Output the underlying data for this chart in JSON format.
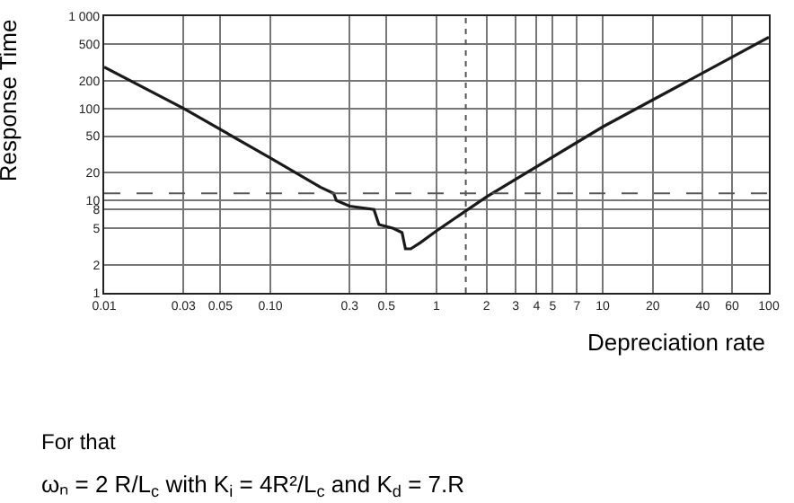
{
  "chart_data": {
    "type": "line",
    "xlabel": "Depreciation rate",
    "ylabel": "Response Time",
    "log": "xy",
    "grid": true,
    "marker": "none",
    "line_style": "solid",
    "xlim": [
      0.01,
      100
    ],
    "ylim": [
      1,
      1000
    ],
    "xticks": [
      0.01,
      0.03,
      0.05,
      {
        "value": 0.1,
        "label": "0.10"
      },
      0.3,
      0.5,
      1,
      2,
      3,
      4,
      5,
      7,
      10,
      20,
      40,
      60,
      100
    ],
    "yticks": [
      1,
      2,
      5,
      8,
      10,
      20,
      50,
      100,
      200,
      500,
      {
        "value": 1000,
        "label": "1 000"
      }
    ],
    "series": [
      {
        "color": "#1a1a1a",
        "x": [
          0.01,
          0.03,
          0.1,
          0.2,
          0.24,
          0.25,
          0.3,
          0.42,
          0.45,
          0.55,
          0.62,
          0.65,
          0.7,
          0.8,
          1,
          2,
          10,
          100
        ],
        "values": [
          280,
          100,
          29,
          14,
          12,
          10,
          8.7,
          8,
          5.5,
          5,
          4.5,
          3,
          3,
          3.5,
          4.7,
          11,
          63,
          590
        ]
      }
    ],
    "ref_lines": [
      {
        "axis": "y",
        "value": 12,
        "line_style": "dashed",
        "color": "#555555"
      },
      {
        "axis": "x",
        "value": 1.5,
        "line_style": "dotted",
        "color": "#555555"
      }
    ],
    "annotations": [
      "For that",
      "ωₙ = 2 R/L$_{c}$ with K$_{i}$ = 4R²/L$_{c}$ and K$_{d}$ = 7.R"
    ]
  }
}
